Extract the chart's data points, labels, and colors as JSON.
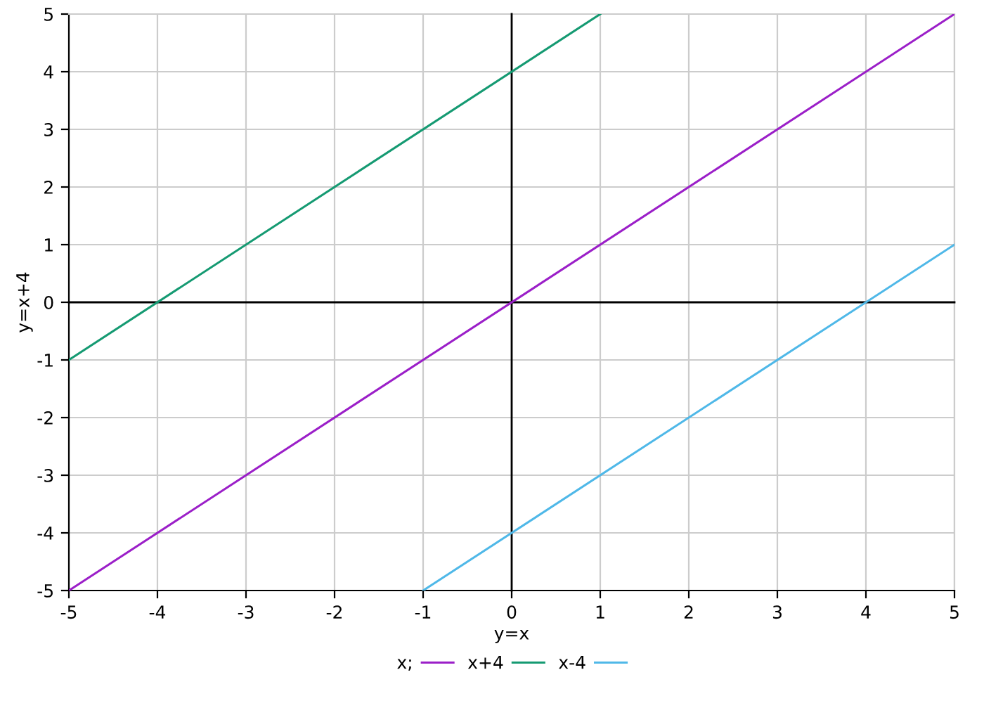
{
  "chart_data": {
    "type": "line",
    "xlabel": "y=x",
    "ylabel": "y=x+4",
    "series": [
      {
        "name": "x;",
        "color": "#9b1fc8",
        "x": [
          -5,
          5
        ],
        "values": [
          -5,
          5
        ]
      },
      {
        "name": "x+4",
        "color": "#159a72",
        "x": [
          -5,
          1
        ],
        "values": [
          -1,
          5
        ]
      },
      {
        "name": "x-4",
        "color": "#4fb8e8",
        "x": [
          -1,
          5
        ],
        "values": [
          -5,
          1
        ]
      }
    ],
    "xlim": [
      -5,
      5
    ],
    "ylim": [
      -5,
      5
    ],
    "xticks": [
      -5,
      -4,
      -3,
      -2,
      -1,
      0,
      1,
      2,
      3,
      4,
      5
    ],
    "yticks": [
      -5,
      -4,
      -3,
      -2,
      -1,
      0,
      1,
      2,
      3,
      4,
      5
    ],
    "grid": true,
    "legend": "bottom",
    "marker": "none",
    "line_style": "solid"
  }
}
